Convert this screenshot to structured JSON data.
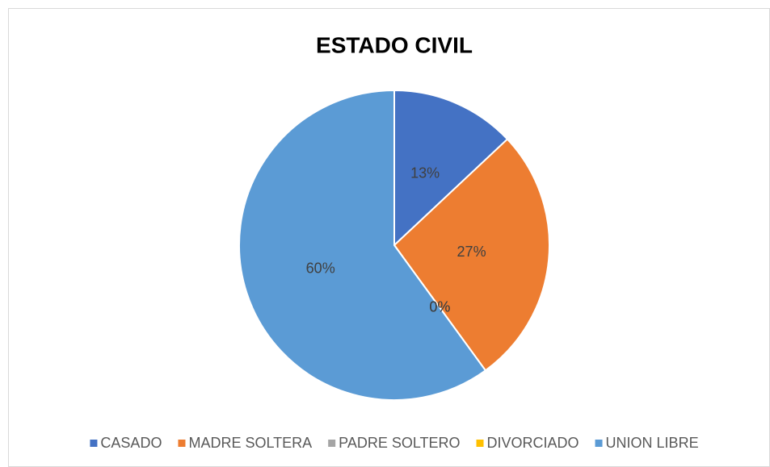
{
  "chart_data": {
    "type": "pie",
    "title": "ESTADO CIVIL",
    "categories": [
      "CASADO",
      "MADRE SOLTERA",
      "PADRE SOLTERO",
      "DIVORCIADO",
      "UNION LIBRE"
    ],
    "values": [
      13,
      27,
      0,
      0,
      60
    ],
    "value_labels": [
      "13%",
      "27%",
      "0%",
      "0%",
      "60%"
    ],
    "colors": [
      "#4472c4",
      "#ed7d31",
      "#a5a5a5",
      "#ffc000",
      "#5b9bd5"
    ],
    "legend": "bottom"
  }
}
